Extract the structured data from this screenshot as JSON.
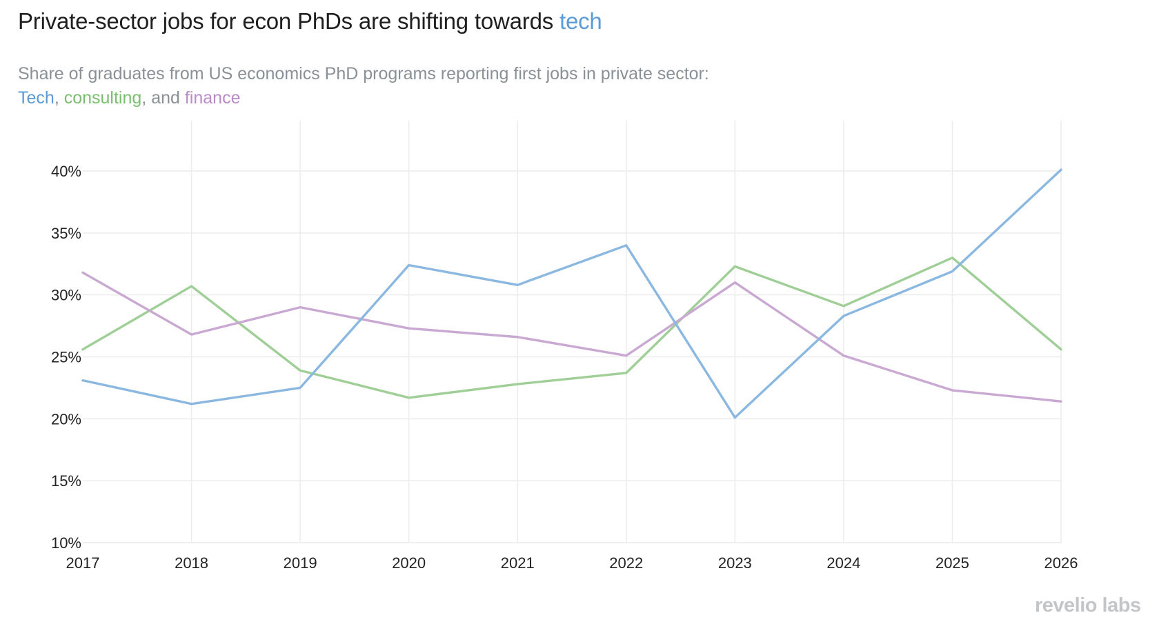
{
  "header": {
    "title_prefix": "Private-sector jobs for econ PhDs are shifting towards ",
    "title_highlight": "tech",
    "subtitle_line1": "Share of graduates from US economics PhD programs reporting first jobs in private sector:",
    "subtitle_tech": "Tech",
    "subtitle_sep1": ", ",
    "subtitle_consulting": "consulting",
    "subtitle_sep2": ", and ",
    "subtitle_finance": "finance"
  },
  "brand": {
    "text": "revelio labs"
  },
  "colors": {
    "tech": "#8ab8e0",
    "consulting": "#9fcf97",
    "finance": "#c9a8d2",
    "title_highlight": "#5b9bd5",
    "subtitle_tech": "#5b9bd5",
    "subtitle_consulting": "#79bf6f",
    "subtitle_finance": "#b88cc6"
  },
  "chart_data": {
    "type": "line",
    "x": [
      2017,
      2018,
      2019,
      2020,
      2021,
      2022,
      2023,
      2024,
      2025,
      2026
    ],
    "x_tick_labels": [
      "2017",
      "2018",
      "2019",
      "2020",
      "2021",
      "2022",
      "2023",
      "2024",
      "2025",
      "2026"
    ],
    "y_tick_values": [
      10,
      15,
      20,
      25,
      30,
      35,
      40
    ],
    "y_tick_labels": [
      "10%",
      "15%",
      "20%",
      "25%",
      "30%",
      "35%",
      "40%"
    ],
    "ylim": [
      10,
      40
    ],
    "xlim": [
      2017,
      2026
    ],
    "grid": true,
    "legend": "in subtitle",
    "series": [
      {
        "key": "tech",
        "values": [
          23.1,
          21.2,
          22.5,
          32.4,
          30.8,
          34.0,
          20.1,
          28.3,
          31.9,
          40.1
        ]
      },
      {
        "key": "consulting",
        "values": [
          25.6,
          30.7,
          23.9,
          21.7,
          22.8,
          23.7,
          32.3,
          29.1,
          33.0,
          25.6
        ]
      },
      {
        "key": "finance",
        "values": [
          31.8,
          26.8,
          29.0,
          27.3,
          26.6,
          25.1,
          31.0,
          25.1,
          22.3,
          21.4
        ]
      }
    ]
  }
}
